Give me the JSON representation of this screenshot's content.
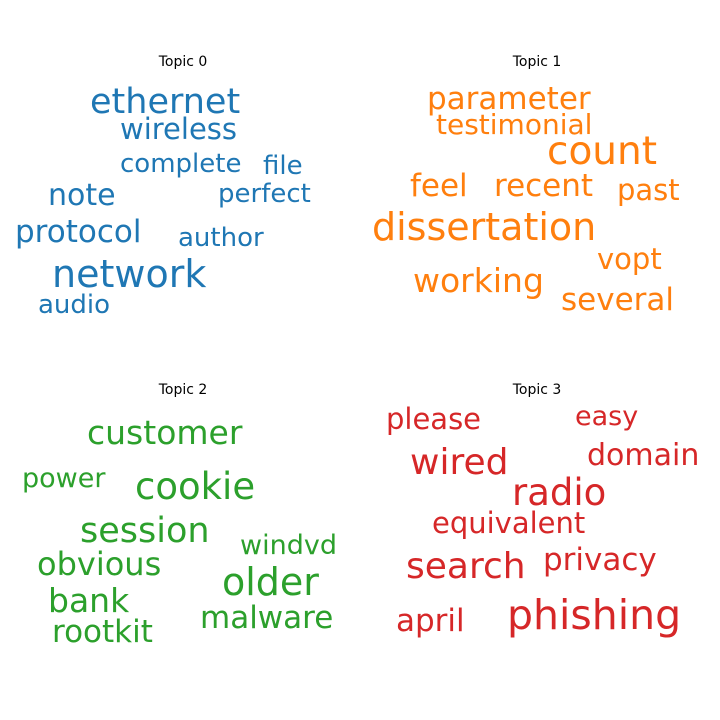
{
  "chart_data": [
    {
      "type": "wordcloud",
      "title": "Topic 0",
      "color": "#1f77b4",
      "words": [
        "ethernet",
        "wireless",
        "complete",
        "file",
        "note",
        "perfect",
        "protocol",
        "author",
        "network",
        "audio"
      ]
    },
    {
      "type": "wordcloud",
      "title": "Topic 1",
      "color": "#ff7f0e",
      "words": [
        "parameter",
        "testimonial",
        "count",
        "feel",
        "recent",
        "past",
        "dissertation",
        "vopt",
        "working",
        "several"
      ]
    },
    {
      "type": "wordcloud",
      "title": "Topic 2",
      "color": "#2ca02c",
      "words": [
        "customer",
        "power",
        "cookie",
        "session",
        "windvd",
        "obvious",
        "older",
        "bank",
        "malware",
        "rootkit"
      ]
    },
    {
      "type": "wordcloud",
      "title": "Topic 3",
      "color": "#d62728",
      "words": [
        "please",
        "easy",
        "wired",
        "domain",
        "radio",
        "equivalent",
        "search",
        "privacy",
        "april",
        "phishing"
      ]
    }
  ]
}
